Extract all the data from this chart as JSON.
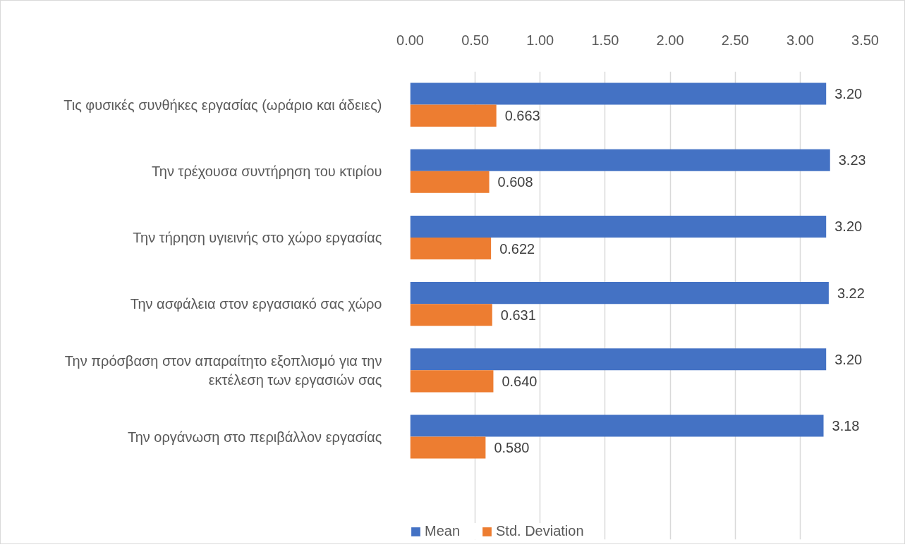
{
  "chart_data": {
    "type": "bar",
    "orientation": "horizontal",
    "categories": [
      "Τις φυσικές συνθήκες εργασίας (ωράριο και άδειες)",
      "Την τρέχουσα συντήρηση του κτιρίου",
      "Την τήρηση υγιεινής στο χώρο εργασίας",
      "Την ασφάλεια στον εργασιακό σας χώρο",
      "Την πρόσβαση στον απαραίτητο εξοπλισμό για την εκτέλεση των εργασιών σας",
      "Την οργάνωση στο περιβάλλον εργασίας"
    ],
    "series": [
      {
        "name": "Mean",
        "color": "#4472c4",
        "values": [
          3.2,
          3.23,
          3.2,
          3.22,
          3.2,
          3.18
        ],
        "value_labels": [
          "3.20",
          "3.23",
          "3.20",
          "3.22",
          "3.20",
          "3.18"
        ]
      },
      {
        "name": "Std. Deviation",
        "color": "#ed7d31",
        "values": [
          0.663,
          0.608,
          0.622,
          0.631,
          0.64,
          0.58
        ],
        "value_labels": [
          "0.663",
          "0.608",
          "0.622",
          "0.631",
          "0.640",
          "0.580"
        ]
      }
    ],
    "xlim": [
      0,
      3.5
    ],
    "xticks": [
      {
        "value": 0,
        "label": "0.00"
      },
      {
        "value": 0.5,
        "label": "0.50"
      },
      {
        "value": 1,
        "label": "1.00"
      },
      {
        "value": 1.5,
        "label": "1.50"
      },
      {
        "value": 2,
        "label": "2.00"
      },
      {
        "value": 2.5,
        "label": "2.50"
      },
      {
        "value": 3,
        "label": "3.00"
      },
      {
        "value": 3.5,
        "label": "3.50"
      }
    ],
    "grid": "x",
    "legend": "bottom"
  }
}
